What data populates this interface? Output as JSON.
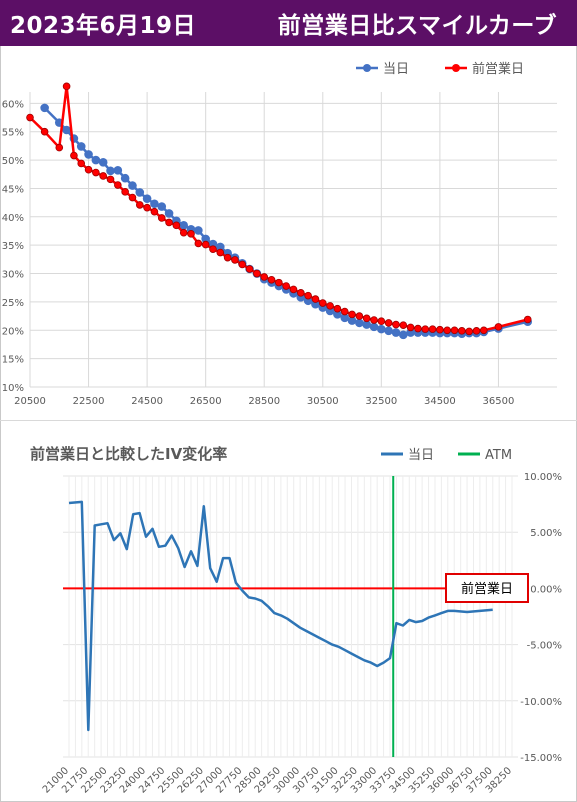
{
  "header": {
    "date": "2023年6月19日",
    "title": "前営業日比スマイルカーブ"
  },
  "colors": {
    "header_bg": "#5c0f66",
    "today": "#4472c4",
    "prev": "#ff0000",
    "diff_line": "#2e75b6",
    "atm": "#00b050",
    "zero_line": "#ff0000",
    "box_border": "#e00000"
  },
  "chart_data": [
    {
      "type": "line",
      "legend_position": "top-right",
      "xlim": [
        20500,
        38500
      ],
      "xticks": [
        20500,
        22500,
        24500,
        26500,
        28500,
        30500,
        32500,
        34500,
        36500
      ],
      "xtick_labels": [
        "20500",
        "22500",
        "24500",
        "26500",
        "28500",
        "30500",
        "32500",
        "34500",
        "36500"
      ],
      "ylim": [
        10,
        62
      ],
      "yticks": [
        10,
        15,
        20,
        25,
        30,
        35,
        40,
        45,
        50,
        55,
        60
      ],
      "ytick_labels": [
        "10%",
        "15%",
        "20%",
        "25%",
        "30%",
        "35%",
        "40%",
        "45%",
        "50%",
        "55%",
        "60%"
      ],
      "grid": true,
      "series": [
        {
          "name": "当日",
          "color": "#4472c4",
          "x": [
            21000,
            21500,
            21750,
            22000,
            22250,
            22500,
            22750,
            23000,
            23250,
            23500,
            23750,
            24000,
            24250,
            24500,
            24750,
            25000,
            25250,
            25500,
            25750,
            26000,
            26250,
            26500,
            26750,
            27000,
            27250,
            27500,
            27750,
            28000,
            28250,
            28500,
            28750,
            29000,
            29250,
            29500,
            29750,
            30000,
            30250,
            30500,
            30750,
            31000,
            31250,
            31500,
            31750,
            32000,
            32250,
            32500,
            32750,
            33000,
            33250,
            33500,
            33750,
            34000,
            34250,
            34500,
            34750,
            35000,
            35250,
            35500,
            35750,
            36000,
            36500,
            37500
          ],
          "y": [
            59.2,
            56.6,
            55.3,
            53.8,
            52.4,
            51.0,
            50.0,
            49.6,
            48.1,
            48.2,
            46.8,
            45.5,
            44.3,
            43.2,
            42.3,
            41.8,
            40.6,
            39.3,
            38.5,
            37.8,
            37.6,
            36.1,
            35.2,
            34.7,
            33.6,
            32.8,
            31.8,
            30.8,
            30.0,
            29.0,
            28.4,
            27.8,
            27.2,
            26.5,
            25.8,
            25.2,
            24.6,
            24.0,
            23.4,
            22.8,
            22.2,
            21.7,
            21.3,
            21.0,
            20.6,
            20.2,
            19.9,
            19.6,
            19.2,
            19.6,
            19.6,
            19.6,
            19.6,
            19.5,
            19.5,
            19.5,
            19.4,
            19.5,
            19.5,
            19.7,
            20.3,
            21.5
          ]
        },
        {
          "name": "前営業日",
          "color": "#ff0000",
          "x": [
            20500,
            21000,
            21500,
            21750,
            22000,
            22250,
            22500,
            22750,
            23000,
            23250,
            23500,
            23750,
            24000,
            24250,
            24500,
            24750,
            25000,
            25250,
            25500,
            25750,
            26000,
            26250,
            26500,
            26750,
            27000,
            27250,
            27500,
            27750,
            28000,
            28250,
            28500,
            28750,
            29000,
            29250,
            29500,
            29750,
            30000,
            30250,
            30500,
            30750,
            31000,
            31250,
            31500,
            31750,
            32000,
            32250,
            32500,
            32750,
            33000,
            33250,
            33500,
            33750,
            34000,
            34250,
            34500,
            34750,
            35000,
            35250,
            35500,
            35750,
            36000,
            36500,
            37500
          ],
          "y": [
            57.5,
            55.0,
            52.2,
            63.0,
            50.8,
            49.4,
            48.3,
            47.8,
            47.2,
            46.6,
            45.6,
            44.4,
            43.4,
            42.1,
            41.6,
            40.9,
            39.8,
            39.0,
            38.5,
            37.2,
            37.0,
            35.3,
            35.1,
            34.3,
            33.7,
            32.8,
            32.4,
            31.6,
            30.8,
            30.0,
            29.4,
            28.9,
            28.4,
            27.8,
            27.2,
            26.6,
            26.1,
            25.5,
            24.8,
            24.3,
            23.8,
            23.3,
            22.8,
            22.5,
            22.1,
            21.8,
            21.6,
            21.3,
            21.0,
            20.9,
            20.5,
            20.3,
            20.2,
            20.2,
            20.1,
            20.0,
            20.0,
            19.9,
            19.8,
            19.9,
            20.0,
            20.6,
            21.9
          ]
        }
      ]
    },
    {
      "type": "line",
      "title": "前営業日と比較したIV変化率",
      "legend_position": "top-right",
      "categories": [
        "21000",
        "21750",
        "22500",
        "23250",
        "24000",
        "24750",
        "25500",
        "26250",
        "27000",
        "27750",
        "28500",
        "29250",
        "30000",
        "30750",
        "31500",
        "32250",
        "33000",
        "33750",
        "34500",
        "35250",
        "36000",
        "36750",
        "37500",
        "38250"
      ],
      "ylim": [
        -15,
        10
      ],
      "yticks": [
        10,
        5,
        0,
        -5,
        -10,
        -15
      ],
      "ytick_labels": [
        "10.00%",
        "5.00%",
        "0.00%",
        "-5.00%",
        "-10.00%",
        "-15.00%"
      ],
      "grid": true,
      "annotation": "前営業日",
      "series": [
        {
          "name": "当日",
          "color": "#2e75b6",
          "x": [
            21000,
            21500,
            21750,
            22000,
            22250,
            22500,
            22750,
            23000,
            23250,
            23500,
            23750,
            24000,
            24250,
            24500,
            24750,
            25000,
            25250,
            25500,
            25750,
            26000,
            26250,
            26500,
            26750,
            27000,
            27250,
            27500,
            27750,
            28000,
            28250,
            28500,
            28750,
            29000,
            29250,
            29500,
            29750,
            30000,
            30250,
            30500,
            30750,
            31000,
            31250,
            31500,
            31750,
            32000,
            32250,
            32500,
            32750,
            33000,
            33250,
            33500,
            33750,
            34000,
            34250,
            34500,
            34750,
            35000,
            35250,
            35500,
            35750,
            36000,
            36500,
            37500
          ],
          "y": [
            7.6,
            7.7,
            -12.6,
            5.6,
            5.7,
            5.8,
            4.3,
            4.9,
            3.5,
            6.6,
            6.7,
            4.6,
            5.3,
            3.7,
            3.8,
            4.7,
            3.6,
            1.9,
            3.3,
            2.0,
            7.3,
            1.8,
            0.6,
            2.7,
            2.7,
            0.5,
            -0.2,
            -0.8,
            -0.9,
            -1.1,
            -1.6,
            -2.2,
            -2.4,
            -2.7,
            -3.1,
            -3.5,
            -3.8,
            -4.1,
            -4.4,
            -4.7,
            -5.0,
            -5.2,
            -5.5,
            -5.8,
            -6.1,
            -6.4,
            -6.6,
            -6.9,
            -6.6,
            -6.2,
            -3.1,
            -3.3,
            -2.8,
            -3.0,
            -2.9,
            -2.6,
            -2.4,
            -2.2,
            -2.0,
            -2.0,
            -2.1,
            -1.9
          ]
        },
        {
          "name": "ATM",
          "color": "#00b050",
          "x_value": 33625
        }
      ]
    }
  ]
}
